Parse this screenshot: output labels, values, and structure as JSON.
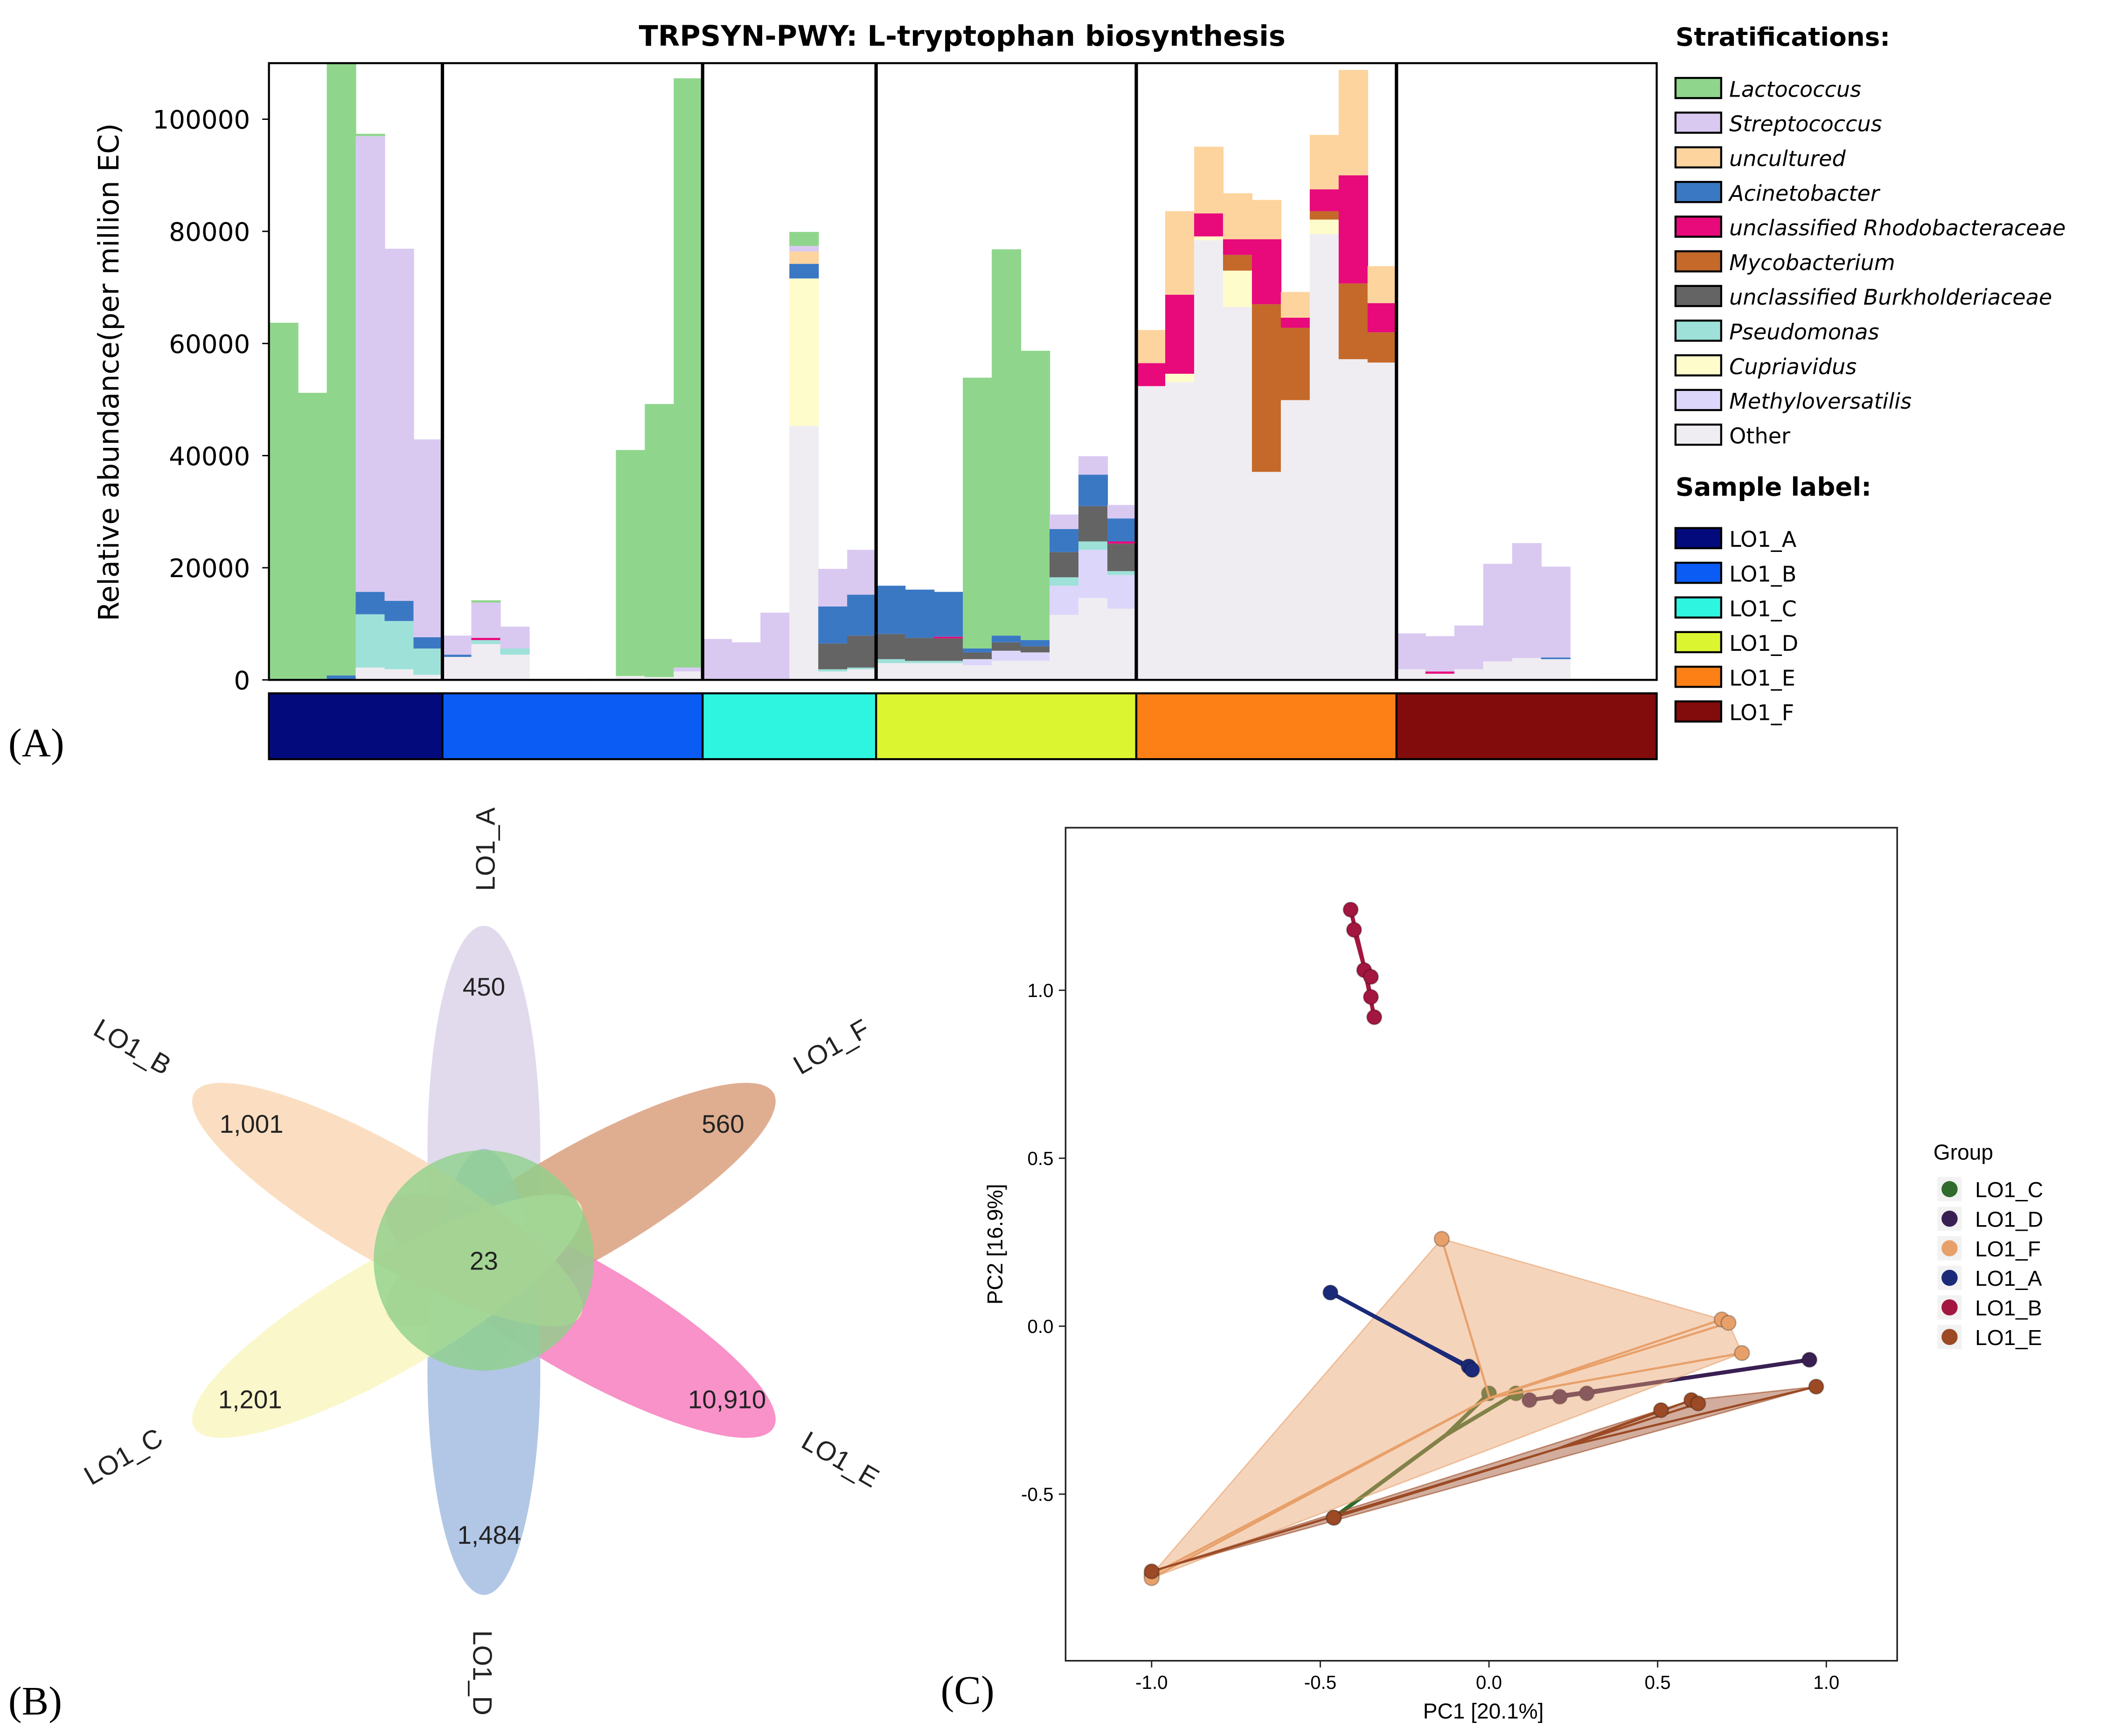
{
  "chart_data": [
    {
      "type": "bar",
      "stacked": true,
      "title": "TRPSYN-PWY: L-tryptophan biosynthesis",
      "panel_label": "(A)",
      "ylabel": "Relative abundance(per million EC)",
      "ylim": [
        0,
        110000
      ],
      "yticks": [
        "0",
        "20000",
        "40000",
        "60000",
        "80000",
        "100000"
      ],
      "ytick_values": [
        0,
        20000,
        40000,
        60000,
        80000,
        100000
      ],
      "legend_strat_title": "Stratifications:",
      "legend_sample_title": "Sample label:",
      "species": [
        {
          "name": "Lactococcus",
          "color": "#8fd68c",
          "italic": true
        },
        {
          "name": "Streptococcus",
          "color": "#d9c9f1",
          "italic": true
        },
        {
          "name": "uncultured",
          "color": "#fdd49e",
          "italic": true
        },
        {
          "name": "Acinetobacter",
          "color": "#3b78c4",
          "italic": true
        },
        {
          "name": "unclassified Rhodobacteraceae",
          "color": "#e8097b",
          "italic": true
        },
        {
          "name": "Mycobacterium",
          "color": "#c4692a",
          "italic": true
        },
        {
          "name": "unclassified Burkholderiaceae",
          "color": "#646464",
          "italic": true
        },
        {
          "name": "Pseudomonas",
          "color": "#9ee1d9",
          "italic": true
        },
        {
          "name": "Cupriavidus",
          "color": "#fefccb",
          "italic": true
        },
        {
          "name": "Methyloversatilis",
          "color": "#dcd7fa",
          "italic": true
        },
        {
          "name": "Other",
          "color": "#efedf2",
          "italic": false
        }
      ],
      "groups": [
        {
          "name": "LO1_A",
          "color": "#030b7c",
          "bars": [
            [
              [
                0,
                63700
              ]
            ],
            [
              [
                0,
                51200
              ]
            ],
            [
              [
                3,
                800
              ],
              [
                0,
                109200
              ]
            ],
            [
              [
                10,
                2200
              ],
              [
                7,
                9500
              ],
              [
                3,
                4000
              ],
              [
                1,
                81300
              ],
              [
                0,
                400
              ]
            ],
            [
              [
                10,
                1900
              ],
              [
                7,
                8600
              ],
              [
                3,
                3600
              ],
              [
                1,
                62800
              ]
            ],
            [
              [
                10,
                900
              ],
              [
                7,
                4700
              ],
              [
                3,
                2000
              ],
              [
                1,
                35300
              ]
            ]
          ]
        },
        {
          "name": "LO1_B",
          "color": "#0a5cf5",
          "bars": [
            [
              [
                10,
                4100
              ],
              [
                3,
                400
              ],
              [
                1,
                3400
              ]
            ],
            [
              [
                10,
                6400
              ],
              [
                7,
                700
              ],
              [
                4,
                400
              ],
              [
                1,
                6300
              ],
              [
                0,
                400
              ]
            ],
            [
              [
                10,
                4500
              ],
              [
                7,
                1100
              ],
              [
                1,
                3900
              ]
            ],
            [],
            [],
            [
              [
                0,
                200
              ]
            ],
            [
              [
                10,
                700
              ],
              [
                0,
                40300
              ]
            ],
            [
              [
                10,
                500
              ],
              [
                0,
                48700
              ]
            ],
            [
              [
                10,
                1500
              ],
              [
                1,
                700
              ],
              [
                0,
                105100
              ]
            ]
          ]
        },
        {
          "name": "LO1_C",
          "color": "#2ef5e0",
          "bars": [
            [
              [
                1,
                7300
              ]
            ],
            [
              [
                1,
                6700
              ]
            ],
            [
              [
                1,
                12000
              ]
            ],
            [
              [
                10,
                45300
              ],
              [
                8,
                26300
              ],
              [
                3,
                2600
              ],
              [
                2,
                2200
              ],
              [
                1,
                1000
              ],
              [
                0,
                2500
              ]
            ],
            [
              [
                10,
                1500
              ],
              [
                7,
                400
              ],
              [
                6,
                4600
              ],
              [
                3,
                6600
              ],
              [
                1,
                6700
              ]
            ],
            [
              [
                10,
                1900
              ],
              [
                7,
                300
              ],
              [
                6,
                5700
              ],
              [
                3,
                7300
              ],
              [
                1,
                8000
              ]
            ]
          ]
        },
        {
          "name": "LO1_D",
          "color": "#dcf531",
          "bars": [
            [
              [
                10,
                3000
              ],
              [
                7,
                700
              ],
              [
                6,
                4500
              ],
              [
                3,
                8600
              ]
            ],
            [
              [
                10,
                3000
              ],
              [
                7,
                400
              ],
              [
                6,
                4100
              ],
              [
                3,
                8600
              ]
            ],
            [
              [
                10,
                3000
              ],
              [
                7,
                400
              ],
              [
                6,
                4000
              ],
              [
                4,
                300
              ],
              [
                3,
                8000
              ]
            ],
            [
              [
                10,
                2600
              ],
              [
                9,
                1100
              ],
              [
                6,
                1200
              ],
              [
                3,
                700
              ],
              [
                0,
                48300
              ]
            ],
            [
              [
                10,
                3400
              ],
              [
                9,
                1800
              ],
              [
                6,
                1500
              ],
              [
                3,
                1200
              ],
              [
                0,
                68900
              ]
            ],
            [
              [
                10,
                3400
              ],
              [
                9,
                1500
              ],
              [
                6,
                1100
              ],
              [
                3,
                1100
              ],
              [
                0,
                51600
              ]
            ],
            [
              [
                10,
                11600
              ],
              [
                9,
                5200
              ],
              [
                7,
                1500
              ],
              [
                6,
                4500
              ],
              [
                3,
                4100
              ],
              [
                1,
                2600
              ]
            ],
            [
              [
                10,
                14600
              ],
              [
                9,
                8600
              ],
              [
                7,
                1500
              ],
              [
                6,
                6300
              ],
              [
                3,
                5600
              ],
              [
                1,
                3300
              ]
            ],
            [
              [
                10,
                12700
              ],
              [
                9,
                6000
              ],
              [
                7,
                700
              ],
              [
                6,
                4900
              ],
              [
                4,
                400
              ],
              [
                3,
                4100
              ],
              [
                1,
                2400
              ]
            ]
          ]
        },
        {
          "name": "LO1_E",
          "color": "#fc8015",
          "bars": [
            [
              [
                10,
                52400
              ],
              [
                4,
                4100
              ],
              [
                2,
                5900
              ]
            ],
            [
              [
                10,
                53100
              ],
              [
                8,
                1500
              ],
              [
                4,
                14100
              ],
              [
                2,
                14900
              ]
            ],
            [
              [
                10,
                78400
              ],
              [
                8,
                700
              ],
              [
                4,
                4100
              ],
              [
                2,
                11900
              ]
            ],
            [
              [
                10,
                66500
              ],
              [
                8,
                6500
              ],
              [
                5,
                2800
              ],
              [
                4,
                2800
              ],
              [
                2,
                8200
              ]
            ],
            [
              [
                10,
                37100
              ],
              [
                5,
                29900
              ],
              [
                4,
                11600
              ],
              [
                2,
                7000
              ]
            ],
            [
              [
                10,
                49900
              ],
              [
                5,
                12900
              ],
              [
                4,
                1800
              ],
              [
                2,
                4600
              ]
            ],
            [
              [
                10,
                79500
              ],
              [
                8,
                2600
              ],
              [
                5,
                1500
              ],
              [
                4,
                3900
              ],
              [
                2,
                9700
              ]
            ],
            [
              [
                10,
                57200
              ],
              [
                5,
                13500
              ],
              [
                4,
                19300
              ],
              [
                2,
                18800
              ]
            ],
            [
              [
                10,
                56600
              ],
              [
                5,
                5400
              ],
              [
                4,
                5200
              ],
              [
                2,
                6600
              ]
            ]
          ]
        },
        {
          "name": "LO1_F",
          "color": "#820c0c",
          "bars": [
            [
              [
                10,
                1900
              ],
              [
                1,
                6400
              ]
            ],
            [
              [
                10,
                1100
              ],
              [
                4,
                400
              ],
              [
                1,
                6300
              ]
            ],
            [
              [
                10,
                1900
              ],
              [
                1,
                7800
              ]
            ],
            [
              [
                10,
                3300
              ],
              [
                1,
                17400
              ]
            ],
            [
              [
                10,
                3900
              ],
              [
                1,
                20500
              ]
            ],
            [
              [
                10,
                3700
              ],
              [
                3,
                300
              ],
              [
                1,
                16200
              ]
            ],
            [
              [
                10,
                300
              ]
            ],
            [
              [
                10,
                200
              ]
            ],
            [
              [
                10,
                100
              ]
            ]
          ]
        }
      ]
    },
    {
      "type": "venn",
      "panel_label": "(B)",
      "sets": [
        {
          "name": "LO1_A",
          "unique": "450",
          "color": "#dcd3ea"
        },
        {
          "name": "LO1_F",
          "unique": "560",
          "color": "#d9a07e"
        },
        {
          "name": "LO1_E",
          "unique": "10,910",
          "color": "#f77fbf"
        },
        {
          "name": "LO1_D",
          "unique": "1,484",
          "color": "#a4bde0"
        },
        {
          "name": "LO1_C",
          "unique": "1,201",
          "color": "#f9f7c2"
        },
        {
          "name": "LO1_B",
          "unique": "1,001",
          "color": "#fad8b6"
        }
      ],
      "core": "23",
      "core_color": "#8fd18b"
    },
    {
      "type": "scatter",
      "panel_label": "(C)",
      "xlabel": "PC1 [20.1%]",
      "ylabel": "PC2 [16.9%]",
      "xlim": [
        -1.255,
        1.21
      ],
      "ylim": [
        -0.996,
        1.484
      ],
      "xticks": [
        "-1.0",
        "-0.5",
        "0.0",
        "0.5",
        "1.0"
      ],
      "xtick_values": [
        -1.0,
        -0.5,
        0.0,
        0.5,
        1.0
      ],
      "yticks": [
        "-0.5",
        "0.0",
        "0.5",
        "1.0"
      ],
      "ytick_values": [
        -0.5,
        0.0,
        0.5,
        1.0
      ],
      "legend_title": "Group",
      "series": [
        {
          "name": "LO1_C",
          "color": "#2e6b2c",
          "hull": false,
          "points": [
            [
              0.0,
              -0.2
            ],
            [
              0.08,
              -0.2
            ],
            [
              -0.46,
              -0.57
            ]
          ]
        },
        {
          "name": "LO1_D",
          "color": "#3a1f52",
          "hull": false,
          "points": [
            [
              0.12,
              -0.22
            ],
            [
              0.21,
              -0.21
            ],
            [
              0.29,
              -0.2
            ],
            [
              0.95,
              -0.1
            ]
          ]
        },
        {
          "name": "LO1_F",
          "color": "#e8a06a",
          "hull": true,
          "points": [
            [
              -0.14,
              0.26
            ],
            [
              0.69,
              0.02
            ],
            [
              0.71,
              0.01
            ],
            [
              0.75,
              -0.08
            ],
            [
              -1.0,
              -0.74
            ],
            [
              -1.0,
              -0.75
            ]
          ]
        },
        {
          "name": "LO1_A",
          "color": "#1b2a78",
          "hull": false,
          "points": [
            [
              -0.47,
              0.1
            ],
            [
              -0.06,
              -0.12
            ],
            [
              -0.05,
              -0.13
            ]
          ]
        },
        {
          "name": "LO1_B",
          "color": "#a3163f",
          "hull": false,
          "points": [
            [
              -0.41,
              1.24
            ],
            [
              -0.4,
              1.18
            ],
            [
              -0.37,
              1.06
            ],
            [
              -0.35,
              1.04
            ],
            [
              -0.35,
              0.98
            ],
            [
              -0.34,
              0.92
            ]
          ]
        },
        {
          "name": "LO1_E",
          "color": "#9b4a25",
          "hull": true,
          "points": [
            [
              0.51,
              -0.25
            ],
            [
              0.6,
              -0.22
            ],
            [
              0.62,
              -0.23
            ],
            [
              0.97,
              -0.18
            ],
            [
              -1.0,
              -0.73
            ],
            [
              -0.46,
              -0.57
            ]
          ]
        }
      ]
    }
  ]
}
